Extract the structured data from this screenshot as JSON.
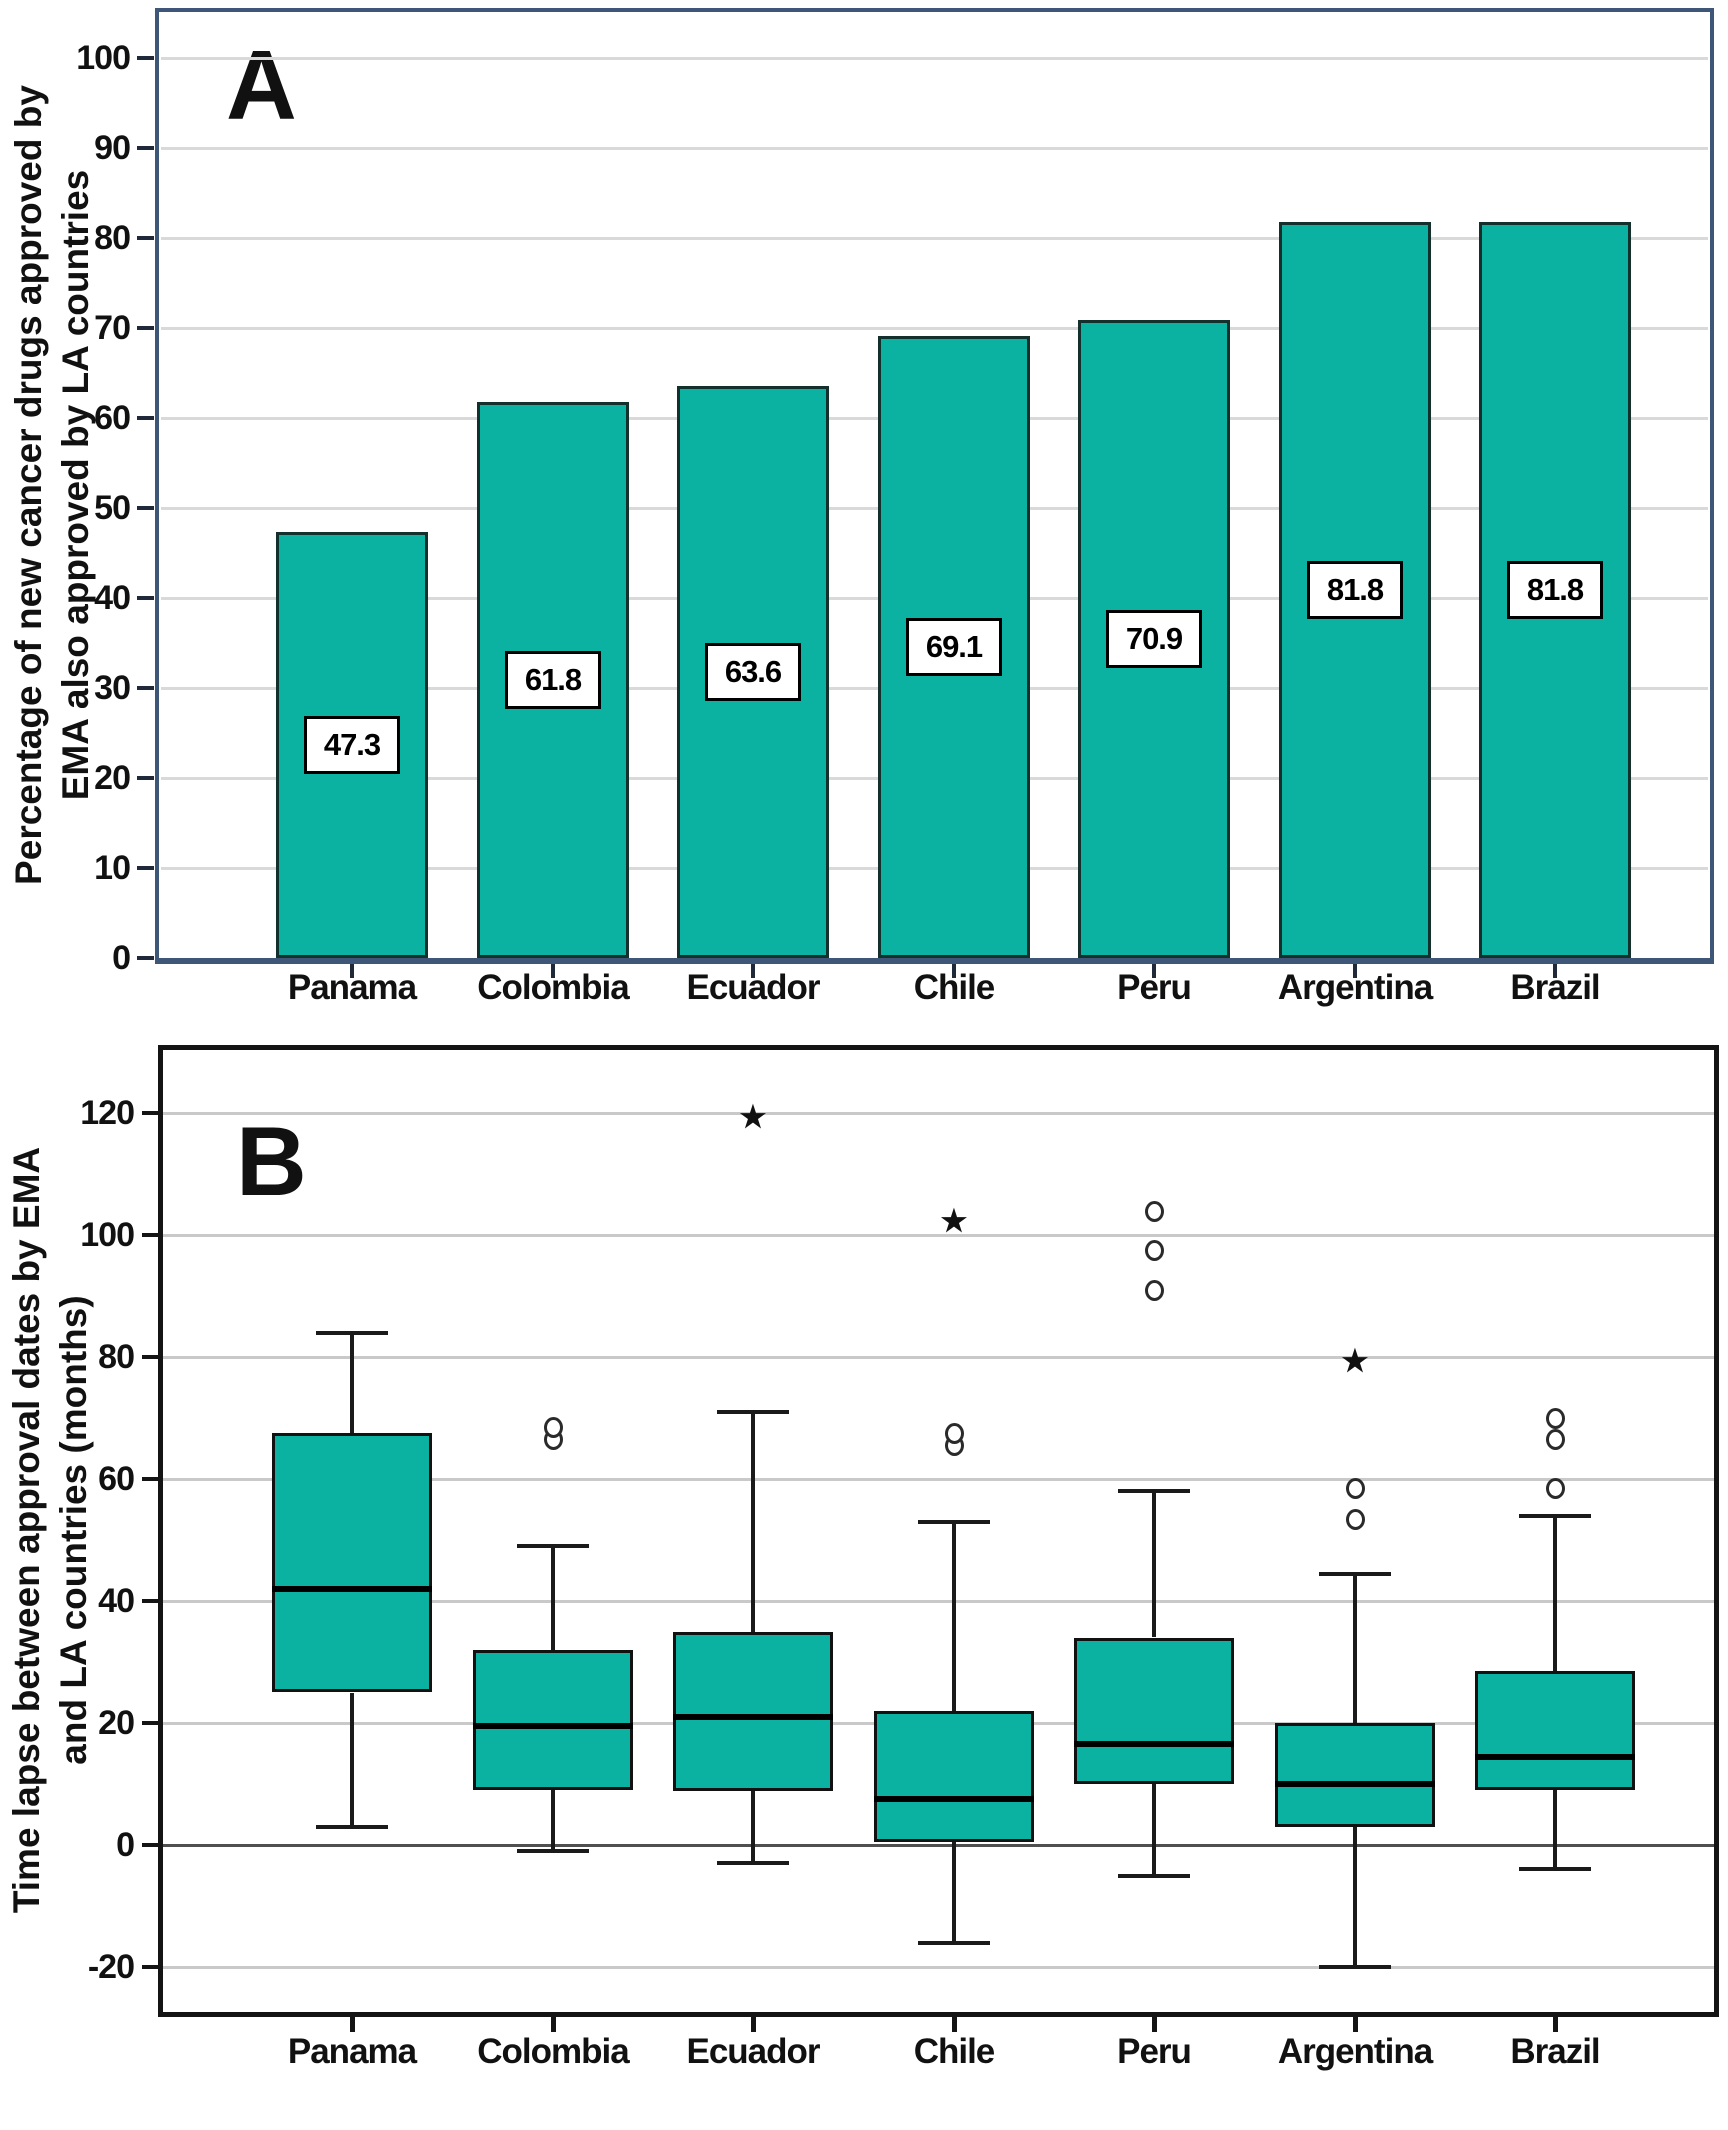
{
  "figure": {
    "panel_a": {
      "panel_label": "A",
      "y_title_line1": "Percentage of new cancer drugs approved by",
      "y_title_line2": "EMA also approved by LA countries"
    },
    "panel_b": {
      "panel_label": "B",
      "y_title_line1": "Time lapse between approval dates by EMA",
      "y_title_line2": "and LA countries (months)"
    }
  },
  "colors": {
    "fill": "#0bb1a1",
    "panel_a_border": "#3e5677",
    "panel_b_border": "#141414",
    "grid_a": "#d9d9d9",
    "grid_b": "#c9c9c9",
    "zero_line": "#4f4f4f"
  },
  "chart_data": [
    {
      "type": "bar",
      "panel": "A",
      "title": "",
      "categories": [
        "Panama",
        "Colombia",
        "Ecuador",
        "Chile",
        "Peru",
        "Argentina",
        "Brazil"
      ],
      "values": [
        47.3,
        61.8,
        63.6,
        69.1,
        70.9,
        81.8,
        81.8
      ],
      "value_labels": [
        "47.3",
        "61.8",
        "63.6",
        "69.1",
        "70.9",
        "81.8",
        "81.8"
      ],
      "xlabel": "",
      "ylabel": "Percentage of new cancer drugs approved by EMA also approved by LA countries",
      "ylim": [
        0,
        105
      ],
      "yticks": [
        0,
        10,
        20,
        30,
        40,
        50,
        60,
        70,
        80,
        90,
        100
      ],
      "grid": true,
      "legend": false
    },
    {
      "type": "box",
      "panel": "B",
      "title": "",
      "categories": [
        "Panama",
        "Colombia",
        "Ecuador",
        "Chile",
        "Peru",
        "Argentina",
        "Brazil"
      ],
      "xlabel": "",
      "ylabel": "Time lapse between approval dates by EMA and LA countries (months)",
      "ylim": [
        -30,
        128
      ],
      "yticks": [
        120,
        100,
        80,
        60,
        40,
        20,
        0,
        -20
      ],
      "grid": true,
      "legend": false,
      "series": [
        {
          "name": "Panama",
          "whisker_low": 3,
          "q1": 25,
          "median": 42,
          "q3": 67.5,
          "whisker_high": 84,
          "outliers": [],
          "extremes": []
        },
        {
          "name": "Colombia",
          "whisker_low": -1,
          "q1": 9,
          "median": 19.5,
          "q3": 32,
          "whisker_high": 49,
          "outliers": [
            66.5,
            68.5
          ],
          "extremes": []
        },
        {
          "name": "Ecuador",
          "whisker_low": -3,
          "q1": 9,
          "median": 21,
          "q3": 35,
          "whisker_high": 71,
          "outliers": [],
          "extremes": [
            119
          ]
        },
        {
          "name": "Chile",
          "whisker_low": -16,
          "q1": 0.5,
          "median": 7.5,
          "q3": 22,
          "whisker_high": 53,
          "outliers": [
            65.5,
            67.5
          ],
          "extremes": [
            102
          ]
        },
        {
          "name": "Peru",
          "whisker_low": -5,
          "q1": 10,
          "median": 16.5,
          "q3": 34,
          "whisker_high": 58,
          "outliers": [
            91,
            97.5,
            104
          ],
          "extremes": []
        },
        {
          "name": "Argentina",
          "whisker_low": -20,
          "q1": 3,
          "median": 10,
          "q3": 20,
          "whisker_high": 44.5,
          "outliers": [
            53.5,
            58.5
          ],
          "extremes": [
            79
          ]
        },
        {
          "name": "Brazil",
          "whisker_low": -4,
          "q1": 9,
          "median": 14.5,
          "q3": 28.5,
          "whisker_high": 54,
          "outliers": [
            58.5,
            66.5,
            70
          ],
          "extremes": []
        }
      ]
    }
  ]
}
